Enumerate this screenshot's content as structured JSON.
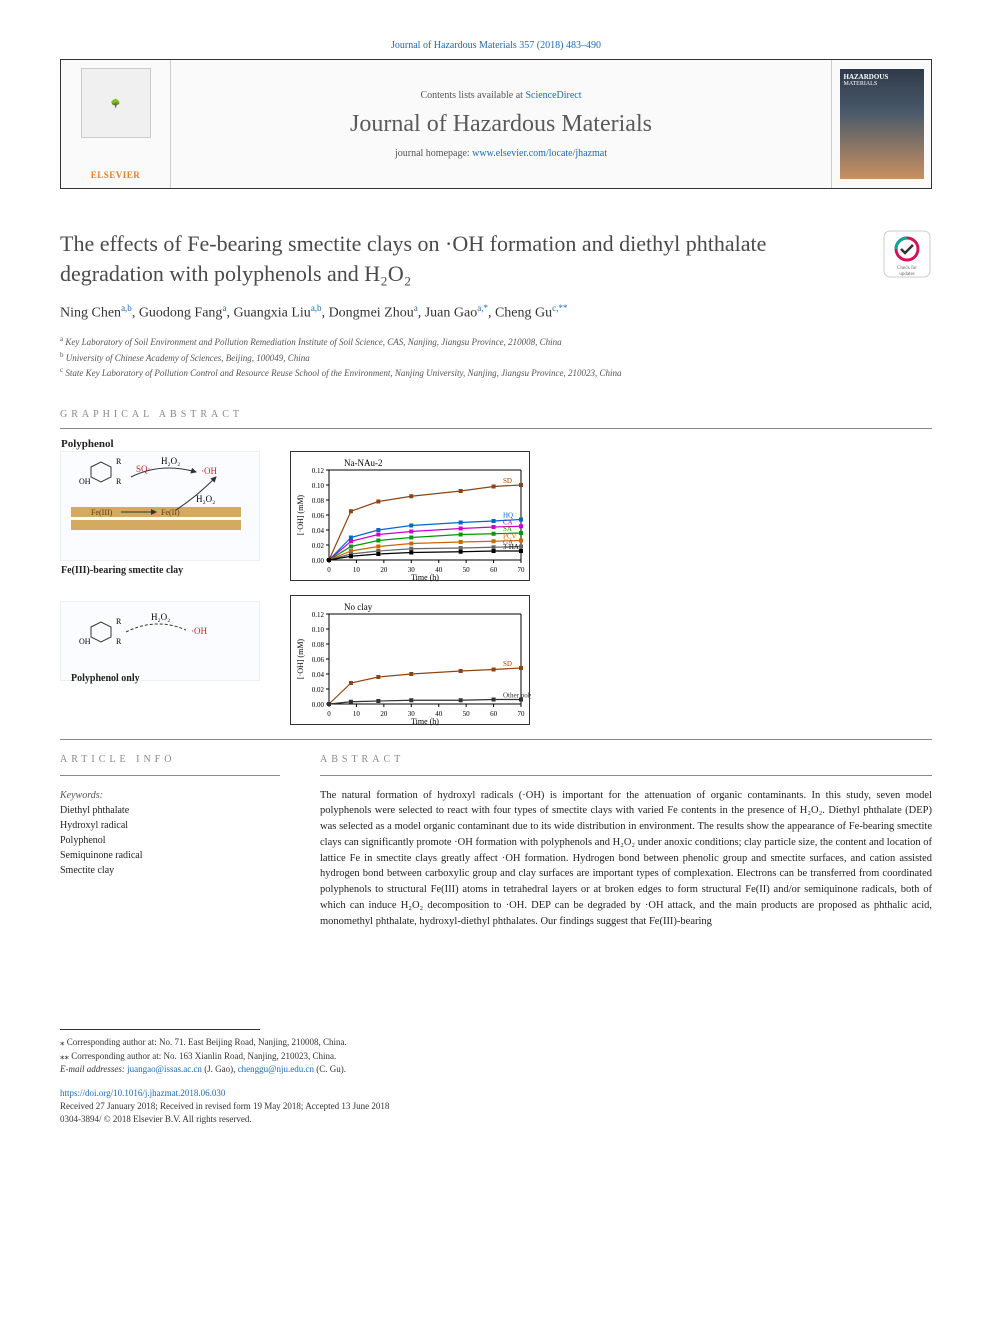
{
  "header": {
    "top_link": "Journal of Hazardous Materials 357 (2018) 483–490",
    "contents_text": "Contents lists available at ",
    "contents_link": "ScienceDirect",
    "journal_name": "Journal of Hazardous Materials",
    "homepage_prefix": "journal homepage: ",
    "homepage_link": "www.elsevier.com/locate/jhazmat",
    "publisher": "ELSEVIER",
    "cover_journal": "HAZARDOUS",
    "cover_sub": "MATERIALS"
  },
  "title": "The effects of Fe-bearing smectite clays on ·OH formation and diethyl phthalate degradation with polyphenols and H₂O₂",
  "check_updates": "Check for updates",
  "authors": [
    {
      "name": "Ning Chen",
      "sup": "a,b"
    },
    {
      "name": "Guodong Fang",
      "sup": "a"
    },
    {
      "name": "Guangxia Liu",
      "sup": "a,b"
    },
    {
      "name": "Dongmei Zhou",
      "sup": "a"
    },
    {
      "name": "Juan Gao",
      "sup": "a,*"
    },
    {
      "name": "Cheng Gu",
      "sup": "c,**"
    }
  ],
  "affiliations": [
    {
      "sup": "a",
      "text": "Key Laboratory of Soil Environment and Pollution Remediation Institute of Soil Science, CAS, Nanjing, Jiangsu Province, 210008, China"
    },
    {
      "sup": "b",
      "text": "University of Chinese Academy of Sciences, Beijing, 100049, China"
    },
    {
      "sup": "c",
      "text": "State Key Laboratory of Pollution Control and Resource Reuse School of the Environment, Nanjing University, Nanjing, Jiangsu Province, 210023, China"
    }
  ],
  "sections": {
    "graphical_abstract": "GRAPHICAL ABSTRACT",
    "article_info": "ARTICLE INFO",
    "abstract": "ABSTRACT"
  },
  "graphical_abstract": {
    "diagram1": {
      "label_polyphenol": "Polyphenol",
      "label_h2o2": "H₂O₂",
      "label_sq": "SQ·",
      "label_oh": "·OH",
      "label_feiii": "Fe(III)",
      "label_feii": "Fe(II)",
      "label_clay": "Fe(III)-bearing smectite clay"
    },
    "diagram2": {
      "label_polyphenol": "Polyphenol only",
      "label_h2o2": "H₂O₂",
      "label_oh": "OH"
    },
    "chart1": {
      "title": "Na-NAu-2",
      "ylabel": "[·OH] (mM)",
      "xlabel": "Time (h)",
      "ylim": [
        0,
        0.12
      ],
      "ytick_step": 0.02,
      "xlim": [
        0,
        70
      ],
      "xtick_step": 10,
      "xticks": [
        0,
        10,
        20,
        30,
        40,
        50,
        60,
        70
      ],
      "yticks": [
        0.0,
        0.02,
        0.04,
        0.06,
        0.08,
        0.1,
        0.12
      ],
      "series": [
        {
          "name": "SD",
          "color": "#8b4513",
          "values": [
            [
              0,
              0
            ],
            [
              8,
              0.065
            ],
            [
              18,
              0.078
            ],
            [
              30,
              0.085
            ],
            [
              48,
              0.092
            ],
            [
              60,
              0.098
            ],
            [
              70,
              0.1
            ]
          ]
        },
        {
          "name": "HQ",
          "color": "#0066cc",
          "values": [
            [
              0,
              0
            ],
            [
              8,
              0.03
            ],
            [
              18,
              0.04
            ],
            [
              30,
              0.046
            ],
            [
              48,
              0.05
            ],
            [
              60,
              0.052
            ],
            [
              70,
              0.054
            ]
          ]
        },
        {
          "name": "CA",
          "color": "#cc00cc",
          "values": [
            [
              0,
              0
            ],
            [
              8,
              0.025
            ],
            [
              18,
              0.034
            ],
            [
              30,
              0.038
            ],
            [
              48,
              0.042
            ],
            [
              60,
              0.044
            ],
            [
              70,
              0.045
            ]
          ]
        },
        {
          "name": "SA",
          "color": "#009900",
          "values": [
            [
              0,
              0
            ],
            [
              8,
              0.018
            ],
            [
              18,
              0.026
            ],
            [
              30,
              0.03
            ],
            [
              48,
              0.034
            ],
            [
              60,
              0.035
            ],
            [
              70,
              0.036
            ]
          ]
        },
        {
          "name": "PCV",
          "color": "#cc6600",
          "values": [
            [
              0,
              0
            ],
            [
              8,
              0.012
            ],
            [
              18,
              0.018
            ],
            [
              30,
              0.022
            ],
            [
              48,
              0.024
            ],
            [
              60,
              0.025
            ],
            [
              70,
              0.026
            ]
          ]
        },
        {
          "name": "GA",
          "color": "#666666",
          "values": [
            [
              0,
              0
            ],
            [
              8,
              0.008
            ],
            [
              18,
              0.012
            ],
            [
              30,
              0.015
            ],
            [
              48,
              0.016
            ],
            [
              60,
              0.017
            ],
            [
              70,
              0.018
            ]
          ]
        },
        {
          "name": "3-HA",
          "color": "#000000",
          "values": [
            [
              0,
              0
            ],
            [
              8,
              0.005
            ],
            [
              18,
              0.008
            ],
            [
              30,
              0.01
            ],
            [
              48,
              0.011
            ],
            [
              60,
              0.012
            ],
            [
              70,
              0.012
            ]
          ]
        }
      ]
    },
    "chart2": {
      "title": "No clay",
      "ylabel": "[·OH] (mM)",
      "xlabel": "Time (h)",
      "ylim": [
        0,
        0.12
      ],
      "ytick_step": 0.02,
      "xlim": [
        0,
        70
      ],
      "xtick_step": 10,
      "xticks": [
        0,
        10,
        20,
        30,
        40,
        50,
        60,
        70
      ],
      "yticks": [
        0.0,
        0.02,
        0.04,
        0.06,
        0.08,
        0.1,
        0.12
      ],
      "series": [
        {
          "name": "SD",
          "color": "#8b4513",
          "values": [
            [
              0,
              0
            ],
            [
              8,
              0.028
            ],
            [
              18,
              0.036
            ],
            [
              30,
              0.04
            ],
            [
              48,
              0.044
            ],
            [
              60,
              0.046
            ],
            [
              70,
              0.048
            ]
          ]
        },
        {
          "name": "Other polyphenols",
          "color": "#333333",
          "values": [
            [
              0,
              0
            ],
            [
              8,
              0.003
            ],
            [
              18,
              0.004
            ],
            [
              30,
              0.005
            ],
            [
              48,
              0.005
            ],
            [
              60,
              0.006
            ],
            [
              70,
              0.006
            ]
          ]
        }
      ]
    }
  },
  "article_info": {
    "keywords_label": "Keywords:",
    "keywords": [
      "Diethyl phthalate",
      "Hydroxyl radical",
      "Polyphenol",
      "Semiquinone radical",
      "Smectite clay"
    ]
  },
  "abstract_text": "The natural formation of hydroxyl radicals (·OH) is important for the attenuation of organic contaminants. In this study, seven model polyphenols were selected to react with four types of smectite clays with varied Fe contents in the presence of H₂O₂. Diethyl phthalate (DEP) was selected as a model organic contaminant due to its wide distribution in environment. The results show the appearance of Fe-bearing smectite clays can significantly promote ·OH formation with polyphenols and H₂O₂ under anoxic conditions; clay particle size, the content and location of lattice Fe in smectite clays greatly affect ·OH formation. Hydrogen bond between phenolic group and smectite surfaces, and cation assisted hydrogen bond between carboxylic group and clay surfaces are important types of complexation. Electrons can be transferred from coordinated polyphenols to structural Fe(III) atoms in tetrahedral layers or at broken edges to form structural Fe(II) and/or semiquinone radicals, both of which can induce H₂O₂ decomposition to ·OH. DEP can be degraded by ·OH attack, and the main products are proposed as phthalic acid, monomethyl phthalate, hydroxyl-diethyl phthalates. Our findings suggest that Fe(III)-bearing",
  "footer": {
    "corr1": "⁎ Corresponding author at: No. 71. East Beijing Road, Nanjing, 210008, China.",
    "corr2": "⁎⁎ Corresponding author at: No. 163 Xianlin Road, Nanjing, 210023, China.",
    "email_label": "E-mail addresses: ",
    "email1": "juangao@issas.ac.cn",
    "email1_name": " (J. Gao), ",
    "email2": "chenggu@nju.edu.cn",
    "email2_name": " (C. Gu).",
    "doi": "https://doi.org/10.1016/j.jhazmat.2018.06.030",
    "received": "Received 27 January 2018; Received in revised form 19 May 2018; Accepted 13 June 2018",
    "copyright": "0304-3894/ © 2018 Elsevier B.V. All rights reserved."
  }
}
